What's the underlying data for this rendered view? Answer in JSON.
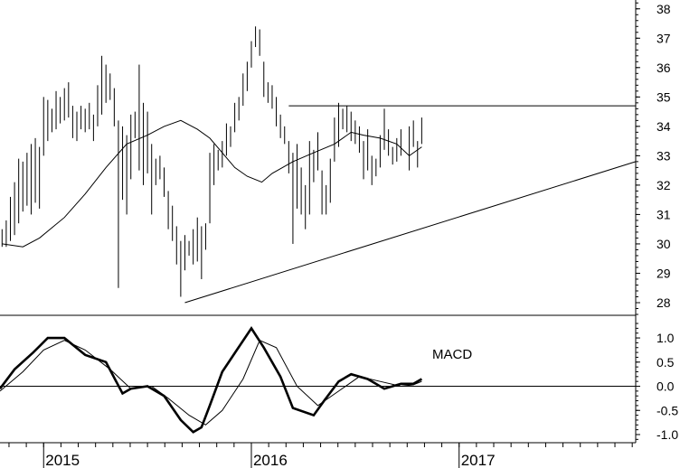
{
  "chart_data": [
    {
      "type": "ohlc",
      "title": "",
      "ylabel": "",
      "ylim": [
        27.6,
        38.3
      ],
      "y_ticks": [
        28,
        29,
        30,
        31,
        32,
        33,
        34,
        35,
        36,
        37,
        38
      ],
      "grid": false,
      "x_ticks": [
        "2015",
        "2016",
        "2017"
      ],
      "xlim": [
        2014.79,
        2017.85
      ],
      "price_bars": [
        [
          2014.8,
          29.9,
          30.5
        ],
        [
          2014.82,
          29.9,
          30.8
        ],
        [
          2014.84,
          30.1,
          31.6
        ],
        [
          2014.86,
          30.3,
          32.1
        ],
        [
          2014.88,
          30.7,
          32.9
        ],
        [
          2014.9,
          31.1,
          32.8
        ],
        [
          2014.92,
          31.3,
          33.1
        ],
        [
          2014.94,
          31.0,
          33.4
        ],
        [
          2014.96,
          31.4,
          33.6
        ],
        [
          2014.98,
          31.2,
          33.3
        ],
        [
          2015.0,
          33.0,
          35.0
        ],
        [
          2015.02,
          33.5,
          34.9
        ],
        [
          2015.04,
          33.8,
          34.6
        ],
        [
          2015.06,
          33.9,
          35.2
        ],
        [
          2015.08,
          34.1,
          35.0
        ],
        [
          2015.1,
          34.2,
          35.3
        ],
        [
          2015.12,
          34.3,
          35.5
        ],
        [
          2015.14,
          33.6,
          34.7
        ],
        [
          2015.16,
          33.5,
          34.5
        ],
        [
          2015.18,
          33.9,
          34.7
        ],
        [
          2015.2,
          33.8,
          34.6
        ],
        [
          2015.22,
          33.9,
          34.8
        ],
        [
          2015.24,
          33.5,
          34.4
        ],
        [
          2015.26,
          34.0,
          35.4
        ],
        [
          2015.28,
          34.4,
          36.4
        ],
        [
          2015.3,
          34.8,
          36.1
        ],
        [
          2015.32,
          34.9,
          35.8
        ],
        [
          2015.34,
          34.0,
          35.3
        ],
        [
          2015.36,
          28.5,
          34.2
        ],
        [
          2015.38,
          31.5,
          34.0
        ],
        [
          2015.4,
          31.0,
          33.7
        ],
        [
          2015.42,
          32.2,
          34.4
        ],
        [
          2015.44,
          33.6,
          34.5
        ],
        [
          2015.46,
          32.5,
          36.1
        ],
        [
          2015.48,
          32.0,
          34.8
        ],
        [
          2015.5,
          32.4,
          34.5
        ],
        [
          2015.52,
          31.0,
          33.4
        ],
        [
          2015.54,
          32.0,
          32.9
        ],
        [
          2015.56,
          32.2,
          33.0
        ],
        [
          2015.58,
          31.6,
          32.6
        ],
        [
          2015.6,
          30.5,
          31.8
        ],
        [
          2015.62,
          30.1,
          31.3
        ],
        [
          2015.64,
          29.3,
          30.6
        ],
        [
          2015.66,
          28.2,
          30.1
        ],
        [
          2015.68,
          29.1,
          30.3
        ],
        [
          2015.7,
          29.6,
          30.1
        ],
        [
          2015.72,
          29.3,
          30.5
        ],
        [
          2015.74,
          29.4,
          30.9
        ],
        [
          2015.76,
          28.8,
          30.6
        ],
        [
          2015.78,
          29.8,
          30.7
        ],
        [
          2015.8,
          30.7,
          33.1
        ],
        [
          2015.82,
          32.0,
          33.4
        ],
        [
          2015.84,
          32.5,
          33.2
        ],
        [
          2015.86,
          32.6,
          33.5
        ],
        [
          2015.88,
          33.0,
          34.1
        ],
        [
          2015.9,
          33.3,
          34.0
        ],
        [
          2015.92,
          33.8,
          34.8
        ],
        [
          2015.94,
          34.2,
          35.0
        ],
        [
          2015.96,
          34.7,
          35.8
        ],
        [
          2015.98,
          35.2,
          36.2
        ],
        [
          2016.0,
          36.0,
          36.9
        ],
        [
          2016.02,
          36.7,
          37.4
        ],
        [
          2016.04,
          36.4,
          37.3
        ],
        [
          2016.06,
          35.0,
          36.2
        ],
        [
          2016.08,
          34.8,
          35.5
        ],
        [
          2016.1,
          34.6,
          35.4
        ],
        [
          2016.12,
          34.0,
          35.0
        ],
        [
          2016.14,
          33.6,
          34.4
        ],
        [
          2016.16,
          33.4,
          34.0
        ],
        [
          2016.18,
          32.4,
          33.5
        ],
        [
          2016.2,
          30.0,
          33.1
        ],
        [
          2016.22,
          31.2,
          33.4
        ],
        [
          2016.24,
          31.0,
          32.6
        ],
        [
          2016.26,
          30.5,
          32.0
        ],
        [
          2016.28,
          31.0,
          33.5
        ],
        [
          2016.3,
          32.1,
          33.2
        ],
        [
          2016.32,
          32.5,
          33.8
        ],
        [
          2016.34,
          31.0,
          32.5
        ],
        [
          2016.36,
          31.0,
          32.0
        ],
        [
          2016.38,
          31.4,
          32.9
        ],
        [
          2016.4,
          32.8,
          34.3
        ],
        [
          2016.42,
          33.3,
          34.8
        ],
        [
          2016.44,
          33.9,
          34.6
        ],
        [
          2016.46,
          33.8,
          34.7
        ],
        [
          2016.48,
          33.5,
          34.5
        ],
        [
          2016.5,
          33.4,
          34.2
        ],
        [
          2016.52,
          33.1,
          34.0
        ],
        [
          2016.54,
          32.2,
          33.5
        ],
        [
          2016.56,
          32.5,
          33.9
        ],
        [
          2016.58,
          32.0,
          33.0
        ],
        [
          2016.6,
          32.3,
          32.9
        ],
        [
          2016.62,
          32.6,
          33.7
        ],
        [
          2016.64,
          33.2,
          34.6
        ],
        [
          2016.66,
          33.0,
          33.9
        ],
        [
          2016.68,
          32.7,
          33.3
        ],
        [
          2016.7,
          32.8,
          33.6
        ],
        [
          2016.72,
          33.0,
          33.9
        ],
        [
          2016.74,
          33.6,
          33.6
        ],
        [
          2016.76,
          32.5,
          34.0
        ],
        [
          2016.78,
          33.3,
          34.2
        ],
        [
          2016.8,
          32.6,
          33.5
        ],
        [
          2016.82,
          33.4,
          34.3
        ]
      ],
      "moving_average": [
        [
          2014.8,
          30.0
        ],
        [
          2014.9,
          29.9
        ],
        [
          2014.98,
          30.2
        ],
        [
          2015.1,
          30.9
        ],
        [
          2015.2,
          31.7
        ],
        [
          2015.3,
          32.6
        ],
        [
          2015.4,
          33.4
        ],
        [
          2015.5,
          33.7
        ],
        [
          2015.58,
          34.0
        ],
        [
          2015.66,
          34.2
        ],
        [
          2015.74,
          33.9
        ],
        [
          2015.8,
          33.6
        ],
        [
          2015.86,
          33.1
        ],
        [
          2015.92,
          32.6
        ],
        [
          2015.98,
          32.3
        ],
        [
          2016.05,
          32.1
        ],
        [
          2016.1,
          32.4
        ],
        [
          2016.2,
          32.8
        ],
        [
          2016.3,
          33.1
        ],
        [
          2016.4,
          33.4
        ],
        [
          2016.48,
          33.8
        ],
        [
          2016.54,
          33.7
        ],
        [
          2016.62,
          33.6
        ],
        [
          2016.7,
          33.4
        ],
        [
          2016.76,
          33.0
        ],
        [
          2016.82,
          33.3
        ]
      ],
      "lines": [
        {
          "x": [
            2015.68,
            2017.85
          ],
          "y": [
            28.0,
            32.8
          ]
        },
        {
          "x": [
            2016.18,
            2017.85
          ],
          "y": [
            34.7,
            34.7
          ]
        }
      ]
    },
    {
      "type": "line",
      "title": "MACD",
      "ylim": [
        -1.15,
        1.45
      ],
      "y_ticks": [
        1.0,
        0.5,
        0.0,
        -0.5,
        -1.0
      ],
      "tick_labels": [
        "1.0",
        "0.5",
        "0.0",
        "-0.5",
        "-1.0"
      ],
      "zero_line": true,
      "series": [
        {
          "x": [
            2014.79,
            2014.86,
            2014.95,
            2015.02,
            2015.1,
            2015.2,
            2015.3,
            2015.38,
            2015.42,
            2015.5,
            2015.58,
            2015.66,
            2015.72,
            2015.76,
            2015.8,
            2015.86,
            2015.93,
            2016.0,
            2016.06,
            2016.14,
            2016.2,
            2016.3,
            2016.35,
            2016.42,
            2016.48,
            2016.56,
            2016.64,
            2016.72,
            2016.78,
            2016.82
          ],
          "y": [
            -0.05,
            0.35,
            0.7,
            1.0,
            1.0,
            0.65,
            0.5,
            -0.15,
            -0.05,
            0.0,
            -0.2,
            -0.7,
            -0.95,
            -0.85,
            -0.4,
            0.3,
            0.75,
            1.2,
            0.8,
            0.2,
            -0.45,
            -0.6,
            -0.3,
            0.1,
            0.25,
            0.15,
            -0.05,
            0.05,
            0.05,
            0.15
          ],
          "style": "thick"
        },
        {
          "x": [
            2014.79,
            2014.9,
            2015.0,
            2015.1,
            2015.2,
            2015.32,
            2015.42,
            2015.52,
            2015.6,
            2015.7,
            2015.78,
            2015.86,
            2015.96,
            2016.04,
            2016.12,
            2016.22,
            2016.32,
            2016.42,
            2016.52,
            2016.62,
            2016.72,
            2016.78,
            2016.82
          ],
          "y": [
            -0.1,
            0.3,
            0.75,
            0.95,
            0.75,
            0.35,
            -0.05,
            0.0,
            -0.25,
            -0.6,
            -0.8,
            -0.5,
            0.15,
            0.95,
            0.8,
            0.0,
            -0.4,
            -0.1,
            0.2,
            0.1,
            0.0,
            0.03,
            0.1
          ],
          "style": "thin"
        }
      ]
    }
  ]
}
